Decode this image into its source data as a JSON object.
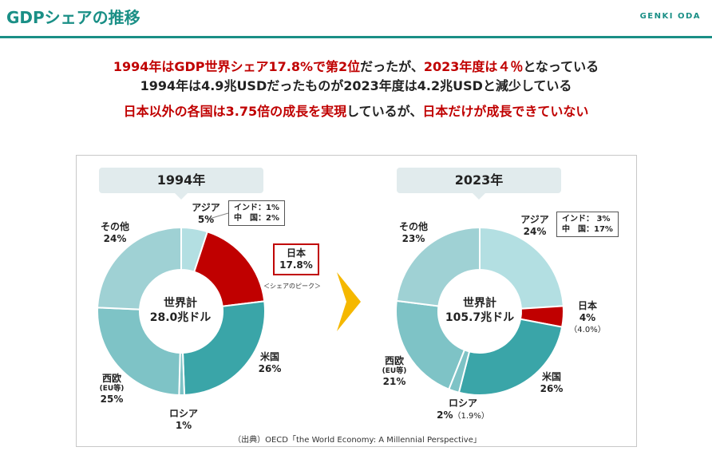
{
  "header": {
    "title": "GDPシェアの推移",
    "brand": "GENKI ODA",
    "accent_color": "#1a8f86"
  },
  "summary": {
    "line1_red_a": "1994年はGDP世界シェア17.8%で第2位",
    "line1_mid": "だったが、",
    "line1_red_b": "2023年度は４％",
    "line1_end": "となっている",
    "line2": "1994年は4.9兆USDだったものが2023年度は4.2兆USDと減少している",
    "line3_red_a": "日本以外の各国は3.75倍の成長を実現",
    "line3_mid": "しているが、",
    "line3_red_b": "日本だけが成長できていない",
    "highlight_color": "#c00000"
  },
  "chart_data": [
    {
      "type": "pie",
      "style": "donut",
      "year_label": "1994年",
      "center_line1": "世界計",
      "center_line2": "28.0兆ドル",
      "slices": [
        {
          "name": "アジア",
          "value": 5,
          "label": "5%",
          "color": "#b3dfe2"
        },
        {
          "name": "日本",
          "value": 17.8,
          "label": "17.8%",
          "color": "#c00000"
        },
        {
          "name": "米国",
          "value": 26,
          "label": "26%",
          "color": "#3aa5a8"
        },
        {
          "name": "ロシア",
          "value": 1,
          "label": "1%",
          "color": "#7ec3c6"
        },
        {
          "name": "西欧",
          "sub": "(EU等)",
          "value": 25,
          "label": "25%",
          "color": "#7ec3c6"
        },
        {
          "name": "その他",
          "value": 24,
          "label": "24%",
          "color": "#9fd1d4"
        }
      ],
      "asia_breakdown": [
        {
          "name": "インド",
          "value": "1%"
        },
        {
          "name": "中　国",
          "value": "2%"
        }
      ],
      "peak_note": "＜シェアのピーク＞"
    },
    {
      "type": "pie",
      "style": "donut",
      "year_label": "2023年",
      "center_line1": "世界計",
      "center_line2": "105.7兆ドル",
      "slices": [
        {
          "name": "アジア",
          "value": 24,
          "label": "24%",
          "color": "#b3dfe2"
        },
        {
          "name": "日本",
          "value": 4,
          "label": "4%",
          "note": "（4.0%）",
          "color": "#c00000"
        },
        {
          "name": "米国",
          "value": 26,
          "label": "26%",
          "color": "#3aa5a8"
        },
        {
          "name": "ロシア",
          "value": 2,
          "label": "2%",
          "note": "（1.9%）",
          "color": "#7ec3c6"
        },
        {
          "name": "西欧",
          "sub": "(EU等)",
          "value": 21,
          "label": "21%",
          "color": "#7ec3c6"
        },
        {
          "name": "その他",
          "value": 23,
          "label": "23%",
          "color": "#9fd1d4"
        }
      ],
      "asia_breakdown": [
        {
          "name": "インド：",
          "value": "3%"
        },
        {
          "name": "中　国",
          "value": "17%"
        }
      ]
    }
  ],
  "source": "（出典）OECD「the World Economy: A Millennial Perspective」",
  "arrow_color": "#f5b800"
}
